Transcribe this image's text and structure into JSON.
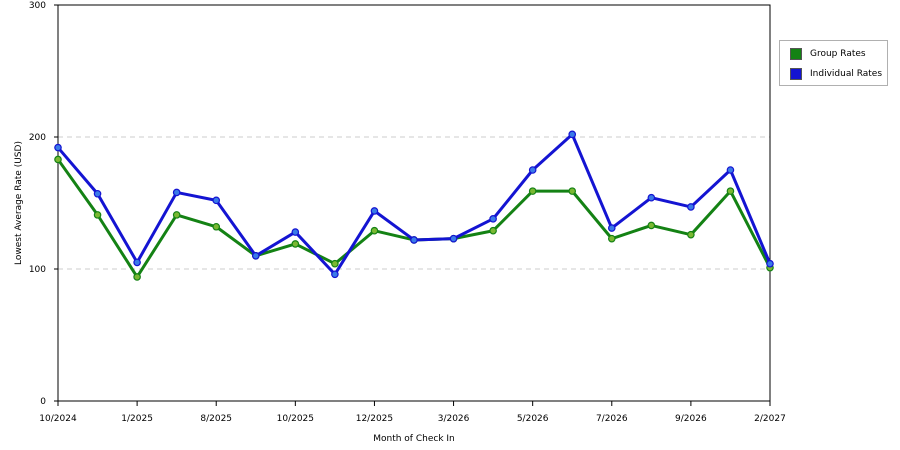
{
  "chart_data": {
    "type": "line",
    "xlabel": "Month of Check In",
    "ylabel": "Lowest Average Rate (USD)",
    "ylim": [
      0,
      300
    ],
    "yticks": [
      0,
      100,
      200,
      300
    ],
    "grid": "horizontal dashed at 100 and 200",
    "legend_position": "top-right",
    "x_tick_labels": [
      "10/2024",
      "1/2025",
      "8/2025",
      "10/2025",
      "12/2025",
      "3/2026",
      "5/2026",
      "7/2026",
      "9/2026",
      "2/2027"
    ],
    "series": [
      {
        "name": "Group Rates",
        "color": "#148214",
        "values": [
          183,
          141,
          94,
          141,
          132,
          110,
          119,
          104,
          129,
          122,
          123,
          129,
          159,
          159,
          123,
          133,
          126,
          159,
          101
        ]
      },
      {
        "name": "Individual Rates",
        "color": "#1414d2",
        "values": [
          192,
          157,
          105,
          158,
          152,
          110,
          128,
          96,
          144,
          122,
          123,
          138,
          175,
          202,
          131,
          154,
          147,
          175,
          104
        ]
      }
    ]
  }
}
